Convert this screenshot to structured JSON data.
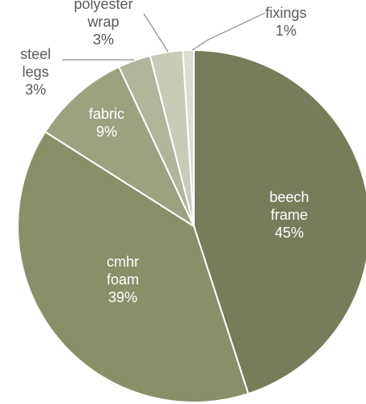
{
  "chart_data": {
    "type": "pie",
    "title": "",
    "slices": [
      {
        "label_lines": [
          "beech",
          "frame"
        ],
        "value": 45,
        "value_label": "45%",
        "color": "#767d5a",
        "label_color": "#ffffff",
        "label_position": "inside"
      },
      {
        "label_lines": [
          "cmhr",
          "foam"
        ],
        "value": 39,
        "value_label": "39%",
        "color": "#8a8f69",
        "label_color": "#ffffff",
        "label_position": "inside"
      },
      {
        "label_lines": [
          "fabric"
        ],
        "value": 9,
        "value_label": "9%",
        "color": "#9ea180",
        "label_color": "#ffffff",
        "label_position": "inside"
      },
      {
        "label_lines": [
          "steel",
          "legs"
        ],
        "value": 3,
        "value_label": "3%",
        "color": "#b2b59a",
        "label_color": "#595959",
        "label_position": "outside"
      },
      {
        "label_lines": [
          "polyester",
          "wrap"
        ],
        "value": 3,
        "value_label": "3%",
        "color": "#c9cbb7",
        "label_color": "#595959",
        "label_position": "outside"
      },
      {
        "label_lines": [
          "fixings"
        ],
        "value": 1,
        "value_label": "1%",
        "color": "#dcddd0",
        "label_color": "#595959",
        "label_position": "outside"
      }
    ],
    "start_angle_deg": 0,
    "direction": "clockwise",
    "legend": "none"
  }
}
